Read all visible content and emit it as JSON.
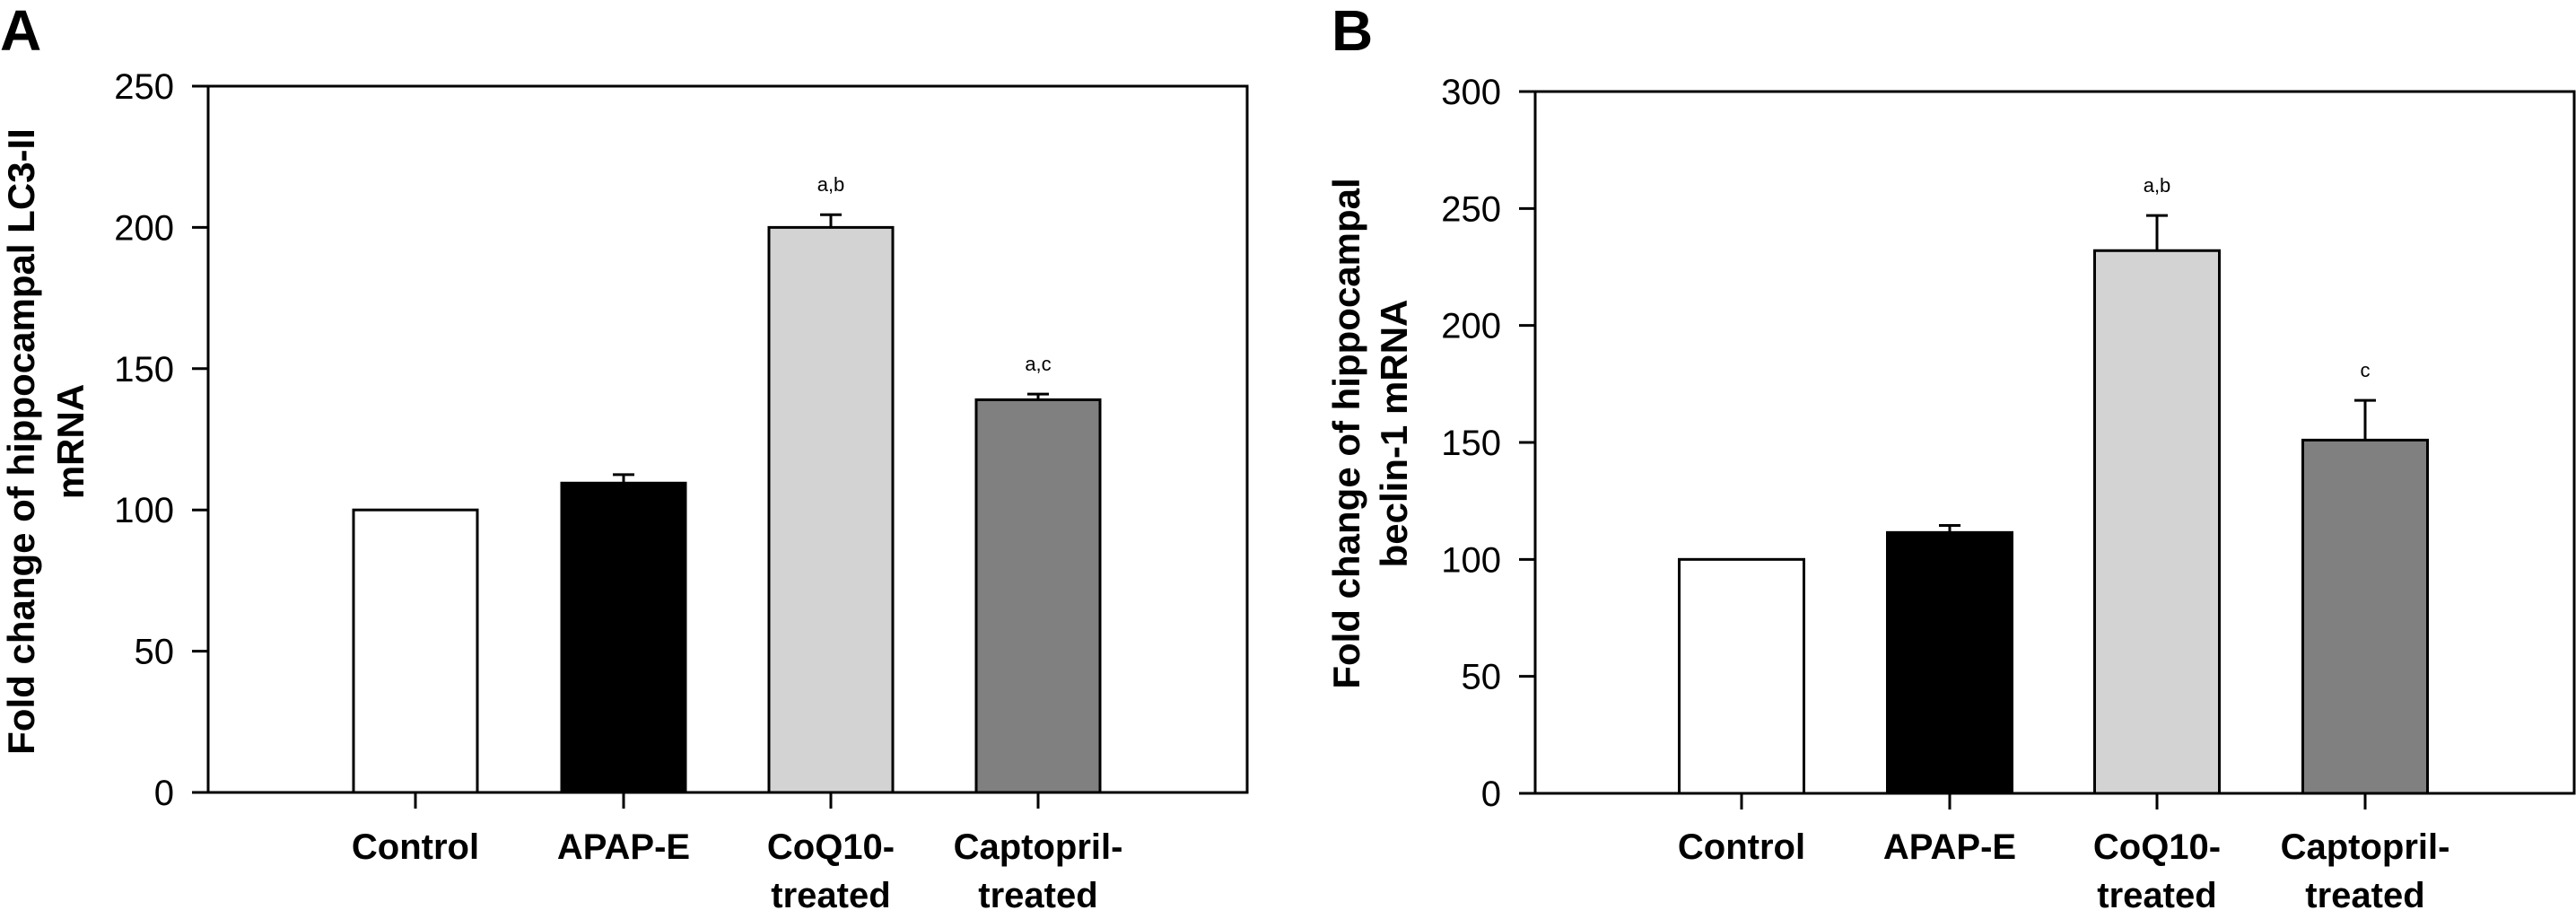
{
  "figure": {
    "panels": [
      "A",
      "B"
    ]
  },
  "chart_data": [
    {
      "type": "bar",
      "panel_label": "A",
      "title": "",
      "xlabel": "",
      "ylabel_lines": [
        "Fold change of hippocampal LC3-II",
        "mRNA"
      ],
      "ylabel": "Fold change of hippocampal LC3-II mRNA",
      "ylim": [
        0,
        250
      ],
      "yticks": [
        0,
        50,
        100,
        150,
        200,
        250
      ],
      "grid": false,
      "legend": "none",
      "categories": [
        "Control",
        "APAP-E",
        "CoQ10-treated",
        "Captopril-treated"
      ],
      "category_label_lines": [
        [
          "Control"
        ],
        [
          "APAP-E"
        ],
        [
          "CoQ10-",
          "treated"
        ],
        [
          "Captopril-",
          "treated"
        ]
      ],
      "values": [
        100,
        109.5,
        200,
        139
      ],
      "errors": [
        0,
        3,
        4.5,
        2
      ],
      "annotations": [
        "",
        "",
        "a,b",
        "a,c"
      ],
      "colors": [
        "#ffffff",
        "#000000",
        "#d3d3d3",
        "#808080"
      ]
    },
    {
      "type": "bar",
      "panel_label": "B",
      "title": "",
      "xlabel": "",
      "ylabel_lines": [
        "Fold change of hippocampal",
        "beclin-1 mRNA"
      ],
      "ylabel": "Fold change of hippocampal beclin-1 mRNA",
      "ylim": [
        0,
        300
      ],
      "yticks": [
        0,
        50,
        100,
        150,
        200,
        250,
        300
      ],
      "grid": false,
      "legend": "none",
      "categories": [
        "Control",
        "APAP-E",
        "CoQ10-treated",
        "Captopril-treated"
      ],
      "category_label_lines": [
        [
          "Control"
        ],
        [
          "APAP-E"
        ],
        [
          "CoQ10-",
          "treated"
        ],
        [
          "Captopril-",
          "treated"
        ]
      ],
      "values": [
        100,
        111.5,
        232,
        151
      ],
      "errors": [
        0,
        3,
        15,
        17
      ],
      "annotations": [
        "",
        "",
        "a,b",
        "c"
      ],
      "colors": [
        "#ffffff",
        "#000000",
        "#d3d3d3",
        "#808080"
      ]
    }
  ]
}
